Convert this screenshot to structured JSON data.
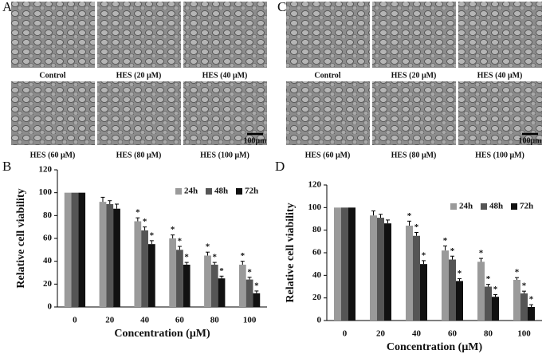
{
  "panels": [
    {
      "letter": "A",
      "images": [
        "Control",
        "HES (20 μM)",
        "HES (40 μM)",
        "HES (60 μM)",
        "HES (80 μM)",
        "HES (100 μM)"
      ],
      "scale_bar": "100μm"
    },
    {
      "letter": "C",
      "images": [
        "Control",
        "HES (20 μM)",
        "HES (40 μM)",
        "HES (60 μM)",
        "HES (80 μM)",
        "HES (100 μM)"
      ],
      "scale_bar": "100μm"
    }
  ],
  "chart_data": [
    {
      "type": "bar",
      "panel": "B",
      "categories": [
        "0",
        "20",
        "40",
        "60",
        "80",
        "100"
      ],
      "xlabel": "Concentration (μM)",
      "ylabel": "Relative cell viability",
      "ylim": [
        0,
        120
      ],
      "yticks": [
        0,
        20,
        40,
        60,
        80,
        100,
        120
      ],
      "legend": "upper right",
      "significance_label": "*",
      "significant": [
        false,
        false,
        true,
        true,
        true,
        true
      ],
      "series": [
        {
          "name": "24h",
          "color": "#9a9a9a",
          "values": [
            100,
            92,
            75,
            60,
            45,
            37
          ],
          "errors": [
            0,
            4,
            3,
            3,
            3,
            3
          ]
        },
        {
          "name": "48h",
          "color": "#555555",
          "values": [
            100,
            90,
            67,
            50,
            37,
            24
          ],
          "errors": [
            0,
            3,
            3,
            3,
            2,
            2
          ]
        },
        {
          "name": "72h",
          "color": "#111111",
          "values": [
            100,
            86,
            55,
            37,
            25,
            12
          ],
          "errors": [
            0,
            4,
            3,
            2,
            2,
            2
          ]
        }
      ]
    },
    {
      "type": "bar",
      "panel": "D",
      "categories": [
        "0",
        "20",
        "40",
        "60",
        "80",
        "100"
      ],
      "xlabel": "Concentration (μM)",
      "ylabel": "Relative cell viability",
      "ylim": [
        0,
        120
      ],
      "yticks": [
        0,
        20,
        40,
        60,
        80,
        100,
        120
      ],
      "legend": "upper right",
      "significance_label": "*",
      "significant": [
        false,
        false,
        true,
        true,
        true,
        true
      ],
      "series": [
        {
          "name": "24h",
          "color": "#9a9a9a",
          "values": [
            100,
            93,
            84,
            62,
            52,
            36
          ],
          "errors": [
            0,
            4,
            4,
            4,
            3,
            2
          ]
        },
        {
          "name": "48h",
          "color": "#555555",
          "values": [
            100,
            91,
            75,
            54,
            30,
            24
          ],
          "errors": [
            0,
            3,
            3,
            3,
            2,
            2
          ]
        },
        {
          "name": "72h",
          "color": "#111111",
          "values": [
            100,
            86,
            50,
            35,
            21,
            12
          ],
          "errors": [
            0,
            3,
            3,
            2,
            2,
            2
          ]
        }
      ]
    }
  ]
}
